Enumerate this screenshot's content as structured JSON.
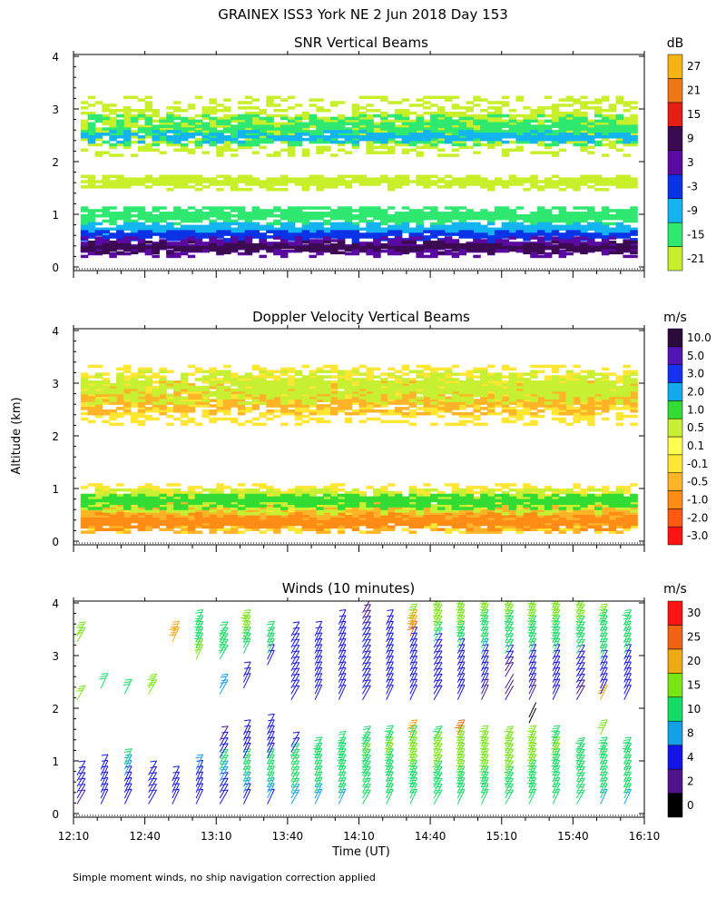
{
  "figure": {
    "title": "GRAINEX ISS3 York NE   2 Jun 2018 Day 153",
    "ylabel": "Altitude (km)",
    "xlabel": "Time (UT)",
    "footnote": "Simple moment winds, no ship navigation correction applied"
  },
  "chart_data": [
    {
      "type": "heatmap",
      "title": "SNR Vertical Beams",
      "colorbar_unit": "dB",
      "x_range": [
        "12:10",
        "16:10"
      ],
      "y_range": [
        0,
        4
      ],
      "yticks": [
        "0",
        "1",
        "2",
        "3",
        "4"
      ],
      "levels": [
        "-21",
        "-15",
        "-9",
        "-3",
        "3",
        "9",
        "15",
        "21",
        "27"
      ],
      "colors": [
        "#c8f02a",
        "#2ee870",
        "#14b4f0",
        "#0a32e6",
        "#5a0aa0",
        "#3c0a50",
        "#e61e14",
        "#f07814",
        "#f5b414"
      ],
      "layers": [
        {
          "level": "-21",
          "ranges": [
            [
              1.45,
              1.75
            ],
            [
              2.1,
              3.2
            ]
          ]
        },
        {
          "level": "-15",
          "ranges": [
            [
              0.75,
              1.15
            ],
            [
              2.3,
              2.85
            ]
          ]
        },
        {
          "level": "-9",
          "ranges": [
            [
              0.55,
              0.85
            ],
            [
              2.35,
              2.55
            ]
          ]
        },
        {
          "level": "-3",
          "ranges": [
            [
              0.45,
              0.7
            ]
          ]
        },
        {
          "level": "3",
          "ranges": [
            [
              0.18,
              0.55
            ]
          ]
        },
        {
          "level": "9",
          "ranges": [
            [
              0.25,
              0.45
            ]
          ]
        }
      ]
    },
    {
      "type": "heatmap",
      "title": "Doppler Velocity Vertical Beams",
      "colorbar_unit": "m/s",
      "x_range": [
        "12:10",
        "16:10"
      ],
      "y_range": [
        0,
        4
      ],
      "yticks": [
        "0",
        "1",
        "2",
        "3",
        "4"
      ],
      "levels": [
        "-3.0",
        "-2.0",
        "-1.0",
        "-0.5",
        "-0.1",
        "0.1",
        "0.5",
        "1.0",
        "2.0",
        "3.0",
        "5.0",
        "10.0"
      ],
      "colors": [
        "#ff1414",
        "#ff5a14",
        "#ff8c14",
        "#ffb428",
        "#ffe632",
        "#ffff50",
        "#c8f032",
        "#32dc32",
        "#14aaf0",
        "#1432f0",
        "#5014b4",
        "#2d0a3c"
      ],
      "layers": [
        {
          "level": "-0.1",
          "ranges": [
            [
              0.15,
              1.1
            ],
            [
              2.2,
              3.3
            ]
          ]
        },
        {
          "level": "-0.5",
          "ranges": [
            [
              0.15,
              0.8
            ],
            [
              2.4,
              3.0
            ]
          ]
        },
        {
          "level": "-1.0",
          "ranges": [
            [
              0.2,
              0.5
            ]
          ]
        },
        {
          "level": "0.5",
          "ranges": [
            [
              0.5,
              1.0
            ],
            [
              2.6,
              3.2
            ]
          ]
        },
        {
          "level": "1.0",
          "ranges": [
            [
              0.6,
              0.9
            ]
          ]
        }
      ]
    },
    {
      "type": "scatter",
      "title": "Winds (10 minutes)",
      "colorbar_unit": "m/s",
      "x_range": [
        "12:10",
        "16:10"
      ],
      "y_range": [
        0,
        4
      ],
      "yticks": [
        "0",
        "1",
        "2",
        "3",
        "4"
      ],
      "xticks": [
        "12:10",
        "12:40",
        "13:10",
        "13:40",
        "14:10",
        "14:40",
        "15:10",
        "15:40",
        "16:10"
      ],
      "levels": [
        "0",
        "2",
        "4",
        "8",
        "10",
        "15",
        "20",
        "25",
        "30"
      ],
      "colors": [
        "#000000",
        "#50148c",
        "#1414e6",
        "#14a0e6",
        "#14dc64",
        "#78e614",
        "#f0aa14",
        "#f06414",
        "#ff1414"
      ],
      "profiles": [
        {
          "time": "12:10",
          "speeds": [
            3,
            4,
            4,
            5,
            5,
            4,
            0,
            0,
            0,
            0,
            0,
            0,
            0,
            0,
            0,
            0,
            0,
            0,
            16,
            0,
            0,
            0,
            0,
            0,
            0,
            0,
            0,
            0,
            17,
            17,
            0,
            0,
            0,
            0,
            0
          ]
        },
        {
          "time": "12:20",
          "speeds": [
            4,
            4,
            5,
            5,
            6,
            7,
            7,
            0,
            0,
            0,
            0,
            0,
            0,
            0,
            0,
            0,
            0,
            0,
            0,
            0,
            14,
            0,
            0,
            0,
            0,
            0,
            0,
            0,
            0,
            0,
            0,
            0,
            0,
            0,
            0
          ]
        },
        {
          "time": "12:30",
          "speeds": [
            5,
            5,
            6,
            6,
            7,
            8,
            9,
            12,
            0,
            0,
            0,
            0,
            0,
            0,
            0,
            0,
            0,
            0,
            0,
            14,
            0,
            0,
            0,
            0,
            0,
            0,
            0,
            0,
            0,
            0,
            0,
            0,
            0,
            0,
            0
          ]
        },
        {
          "time": "12:40",
          "speeds": [
            4,
            5,
            5,
            6,
            6,
            7,
            0,
            0,
            0,
            0,
            0,
            0,
            0,
            0,
            0,
            0,
            0,
            0,
            0,
            15,
            15,
            0,
            0,
            0,
            0,
            0,
            0,
            0,
            0,
            0,
            0,
            0,
            0,
            0,
            0
          ]
        },
        {
          "time": "12:50",
          "speeds": [
            5,
            5,
            6,
            6,
            7,
            0,
            0,
            0,
            0,
            0,
            0,
            0,
            0,
            0,
            0,
            0,
            0,
            0,
            0,
            0,
            0,
            0,
            0,
            0,
            0,
            0,
            0,
            0,
            22,
            22,
            0,
            0,
            0,
            0,
            0
          ]
        },
        {
          "time": "13:00",
          "speeds": [
            4,
            5,
            5,
            6,
            6,
            7,
            8,
            0,
            0,
            0,
            0,
            0,
            0,
            0,
            0,
            0,
            0,
            0,
            0,
            0,
            0,
            0,
            0,
            0,
            0,
            16,
            15,
            14,
            14,
            13,
            13,
            12,
            0,
            0,
            0
          ]
        },
        {
          "time": "13:10",
          "speeds": [
            5,
            6,
            6,
            7,
            8,
            9,
            10,
            10,
            6,
            5,
            4,
            3,
            0,
            0,
            0,
            0,
            0,
            0,
            0,
            9,
            9,
            0,
            0,
            0,
            0,
            14,
            14,
            13,
            13,
            12,
            0,
            0,
            0,
            0,
            0
          ]
        },
        {
          "time": "13:20",
          "speeds": [
            6,
            7,
            8,
            9,
            10,
            11,
            11,
            12,
            6,
            5,
            5,
            4,
            4,
            0,
            0,
            0,
            0,
            0,
            0,
            0,
            5,
            5,
            5,
            0,
            0,
            0,
            12,
            13,
            14,
            15,
            16,
            18,
            0,
            0,
            0
          ]
        },
        {
          "time": "13:30",
          "speeds": [
            7,
            8,
            9,
            10,
            11,
            11,
            12,
            12,
            5,
            5,
            5,
            5,
            5,
            5,
            0,
            0,
            0,
            0,
            0,
            0,
            0,
            0,
            0,
            0,
            4,
            4,
            10,
            10,
            11,
            12,
            0,
            0,
            0,
            0,
            0
          ]
        },
        {
          "time": "13:40",
          "speeds": [
            8,
            9,
            10,
            11,
            11,
            12,
            12,
            13,
            12,
            4,
            4,
            0,
            0,
            0,
            0,
            0,
            0,
            0,
            4,
            4,
            4,
            5,
            5,
            6,
            4,
            4,
            4,
            4,
            5,
            5,
            0,
            0,
            0,
            0,
            0
          ]
        },
        {
          "time": "13:50",
          "speeds": [
            8,
            9,
            10,
            11,
            11,
            12,
            12,
            13,
            13,
            12,
            0,
            0,
            0,
            0,
            0,
            0,
            0,
            0,
            4,
            4,
            4,
            5,
            5,
            5,
            5,
            5,
            6,
            6,
            6,
            6,
            0,
            0,
            0,
            0,
            0
          ]
        },
        {
          "time": "14:00",
          "speeds": [
            9,
            10,
            11,
            12,
            12,
            13,
            13,
            14,
            14,
            13,
            12,
            0,
            0,
            0,
            0,
            0,
            0,
            0,
            4,
            4,
            5,
            5,
            5,
            5,
            5,
            5,
            5,
            5,
            5,
            5,
            4,
            4,
            0,
            0,
            0
          ]
        },
        {
          "time": "14:10",
          "speeds": [
            10,
            11,
            12,
            12,
            13,
            13,
            14,
            14,
            15,
            14,
            13,
            12,
            0,
            0,
            0,
            0,
            0,
            0,
            4,
            4,
            5,
            5,
            5,
            5,
            5,
            5,
            5,
            5,
            5,
            5,
            6,
            3,
            3,
            3,
            0
          ]
        },
        {
          "time": "14:20",
          "speeds": [
            10,
            11,
            12,
            12,
            13,
            13,
            14,
            14,
            15,
            15,
            14,
            13,
            0,
            0,
            0,
            0,
            0,
            0,
            4,
            4,
            5,
            5,
            5,
            5,
            5,
            5,
            5,
            5,
            5,
            5,
            5,
            5,
            0,
            0,
            0
          ]
        },
        {
          "time": "14:30",
          "speeds": [
            11,
            12,
            13,
            13,
            14,
            14,
            15,
            15,
            16,
            16,
            15,
            14,
            22,
            0,
            0,
            0,
            0,
            0,
            4,
            4,
            5,
            5,
            5,
            5,
            5,
            5,
            5,
            5,
            5,
            27,
            20,
            20,
            16,
            0,
            0
          ]
        },
        {
          "time": "14:40",
          "speeds": [
            11,
            12,
            13,
            13,
            14,
            14,
            15,
            15,
            16,
            16,
            15,
            14,
            0,
            0,
            0,
            0,
            0,
            0,
            4,
            4,
            5,
            5,
            5,
            5,
            5,
            5,
            6,
            6,
            10,
            12,
            15,
            15,
            16,
            16,
            16
          ]
        },
        {
          "time": "14:50",
          "speeds": [
            12,
            12,
            13,
            14,
            14,
            15,
            15,
            16,
            16,
            16,
            16,
            15,
            25,
            0,
            0,
            0,
            0,
            0,
            4,
            4,
            5,
            5,
            5,
            5,
            5,
            5,
            6,
            12,
            14,
            14,
            15,
            16,
            16,
            16,
            16
          ]
        },
        {
          "time": "15:00",
          "speeds": [
            12,
            12,
            13,
            14,
            14,
            15,
            15,
            16,
            16,
            16,
            16,
            16,
            0,
            0,
            0,
            0,
            0,
            0,
            3,
            3,
            4,
            4,
            4,
            5,
            5,
            5,
            8,
            10,
            11,
            12,
            13,
            14,
            15,
            15,
            15
          ]
        },
        {
          "time": "15:10",
          "speeds": [
            12,
            12,
            13,
            14,
            14,
            15,
            15,
            16,
            16,
            16,
            16,
            16,
            0,
            0,
            0,
            0,
            0,
            0,
            2,
            2,
            2,
            0,
            3,
            3,
            4,
            4,
            10,
            11,
            12,
            13,
            14,
            14,
            15,
            15,
            15
          ]
        },
        {
          "time": "15:20",
          "speeds": [
            11,
            12,
            13,
            13,
            14,
            14,
            15,
            15,
            16,
            16,
            15,
            15,
            0,
            0,
            1,
            1,
            0,
            0,
            3,
            3,
            4,
            4,
            4,
            4,
            5,
            5,
            12,
            12,
            13,
            14,
            14,
            15,
            15,
            15,
            15
          ]
        },
        {
          "time": "15:30",
          "speeds": [
            10,
            11,
            12,
            12,
            13,
            13,
            14,
            14,
            15,
            15,
            14,
            14,
            0,
            0,
            0,
            0,
            0,
            0,
            4,
            4,
            4,
            4,
            5,
            5,
            4,
            4,
            12,
            13,
            13,
            14,
            14,
            15,
            16,
            16,
            16
          ]
        },
        {
          "time": "15:40",
          "speeds": [
            10,
            11,
            11,
            12,
            12,
            13,
            13,
            14,
            14,
            14,
            0,
            0,
            0,
            0,
            0,
            0,
            0,
            0,
            3,
            3,
            4,
            4,
            5,
            5,
            4,
            4,
            12,
            12,
            13,
            14,
            14,
            15,
            15,
            16,
            16
          ]
        },
        {
          "time": "15:50",
          "speeds": [
            9,
            10,
            10,
            11,
            11,
            12,
            12,
            13,
            13,
            13,
            0,
            0,
            18,
            0,
            0,
            0,
            0,
            0,
            22,
            4,
            4,
            5,
            4,
            4,
            4,
            10,
            10,
            11,
            11,
            12,
            13,
            14,
            15,
            0,
            0
          ]
        },
        {
          "time": "16:00",
          "speeds": [
            9,
            10,
            10,
            11,
            11,
            12,
            12,
            12,
            13,
            13,
            0,
            0,
            0,
            0,
            0,
            0,
            0,
            0,
            4,
            4,
            5,
            5,
            4,
            4,
            4,
            4,
            10,
            10,
            11,
            11,
            12,
            13,
            0,
            0,
            0
          ]
        }
      ]
    }
  ]
}
